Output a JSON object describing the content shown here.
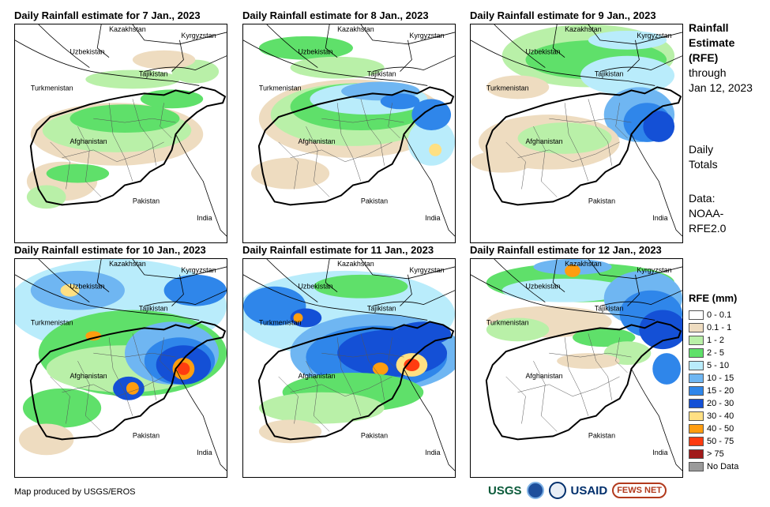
{
  "panels": [
    {
      "title": "Daily Rainfall estimate for 7 Jan., 2023"
    },
    {
      "title": "Daily Rainfall estimate for 8 Jan., 2023"
    },
    {
      "title": "Daily Rainfall estimate for 9 Jan., 2023"
    },
    {
      "title": "Daily Rainfall estimate for 10 Jan., 2023"
    },
    {
      "title": "Daily Rainfall estimate for 11 Jan., 2023"
    },
    {
      "title": "Daily Rainfall estimate for 12 Jan., 2023"
    }
  ],
  "country_labels": {
    "kazakhstan": "Kazakhstan",
    "kyrgyzstan": "Kyrgyzstan",
    "uzbekistan": "Uzbekistan",
    "tajikistan": "Tajikistan",
    "turkmenistan": "Turkmenistan",
    "afghanistan": "Afghanistan",
    "pakistan": "Pakistan",
    "india": "India"
  },
  "side": {
    "title_line1": "Rainfall",
    "title_line2": "Estimate",
    "title_line3": "(RFE)",
    "through": "through",
    "date": "Jan 12, 2023",
    "totals_line1": "Daily",
    "totals_line2": "Totals",
    "data_line1": "Data:",
    "data_line2": "NOAA-",
    "data_line3": "RFE2.0"
  },
  "legend": {
    "title": "RFE (mm)",
    "items": [
      {
        "label": "0 - 0.1",
        "color": "#ffffff"
      },
      {
        "label": "0.1 - 1",
        "color": "#eedcc0"
      },
      {
        "label": "1 - 2",
        "color": "#b9f0a8"
      },
      {
        "label": "2 - 5",
        "color": "#5fe06a"
      },
      {
        "label": "5 - 10",
        "color": "#b9ecfb"
      },
      {
        "label": "10 - 15",
        "color": "#6fb6f2"
      },
      {
        "label": "15 - 20",
        "color": "#2f86ea"
      },
      {
        "label": "20 - 30",
        "color": "#1450d6"
      },
      {
        "label": "30 - 40",
        "color": "#ffe083"
      },
      {
        "label": "40 - 50",
        "color": "#ff9d10"
      },
      {
        "label": "50 - 75",
        "color": "#ff3c10"
      },
      {
        "label": "> 75",
        "color": "#a11a1a"
      },
      {
        "label": "No Data",
        "color": "#9a9a9a"
      }
    ]
  },
  "credit": "Map produced by USGS/EROS",
  "logos": {
    "usgs": "USGS",
    "usaid": "USAID",
    "fews": "FEWS NET"
  }
}
